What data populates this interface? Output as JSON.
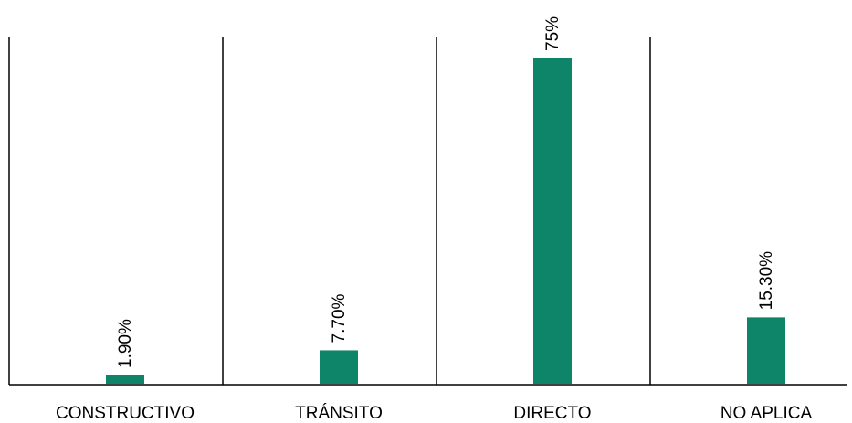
{
  "chart_data": {
    "type": "bar",
    "categories": [
      "CONSTRUCTIVO",
      "TRÁNSITO",
      "DIRECTO",
      "NO APLICA"
    ],
    "values": [
      1.9,
      7.7,
      75,
      15.3
    ],
    "value_labels": [
      "1.90%",
      "7.70%",
      "75%",
      "15.30%"
    ],
    "title": "",
    "xlabel": "",
    "ylabel": "",
    "ylim": [
      0,
      80
    ],
    "grid": false,
    "legend": "none",
    "bar_color": "#0e8468",
    "axis_color": "#000000"
  }
}
